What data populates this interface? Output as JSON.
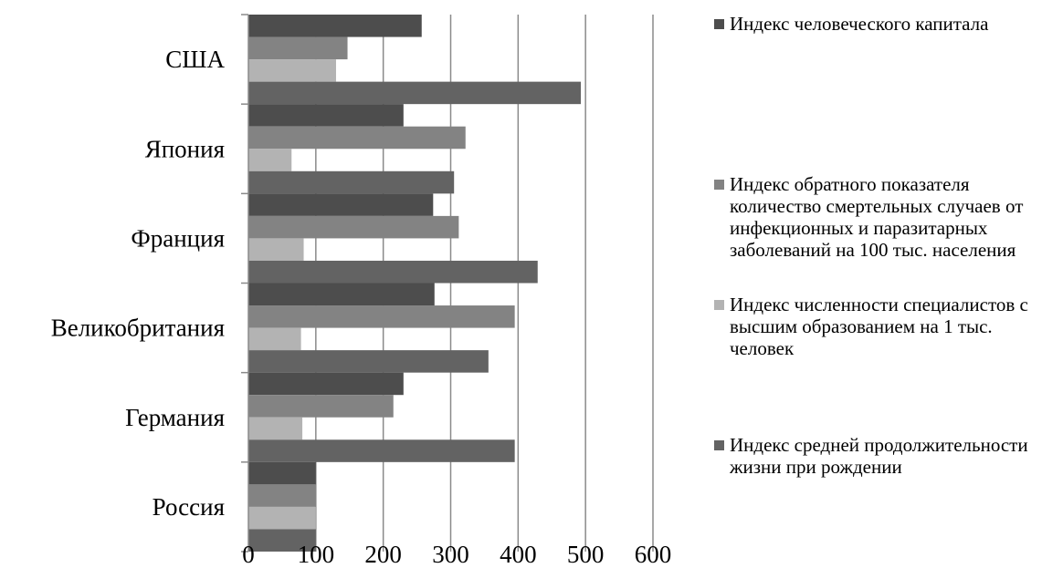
{
  "chart_data": {
    "type": "bar",
    "orientation": "horizontal",
    "categories": [
      "США",
      "Япония",
      "Франция",
      "Великобритания",
      "Германия",
      "Россия"
    ],
    "series": [
      {
        "name": "Индекс человеческого капитала",
        "color": "#4d4d4d",
        "values": [
          257,
          230,
          274,
          276,
          230,
          100
        ]
      },
      {
        "name": "Индекс обратного показателя количество смертельных случаев от инфекционных и паразитарных заболеваний на 100 тыс. населения",
        "color": "#838383",
        "values": [
          147,
          322,
          312,
          395,
          215,
          100
        ]
      },
      {
        "name": "Индекс численности специалистов с высшим образованием на 1 тыс. человек",
        "color": "#b3b3b3",
        "values": [
          130,
          64,
          82,
          78,
          80,
          100
        ]
      },
      {
        "name": "Индекс средней продолжительности жизни при рождении",
        "color": "#636363",
        "values": [
          493,
          305,
          429,
          356,
          395,
          100
        ]
      }
    ],
    "xlim": [
      0,
      600
    ],
    "xticks": [
      "0",
      "100",
      "200",
      "300",
      "400",
      "500",
      "600"
    ],
    "grid": true,
    "legend_position": "right"
  }
}
